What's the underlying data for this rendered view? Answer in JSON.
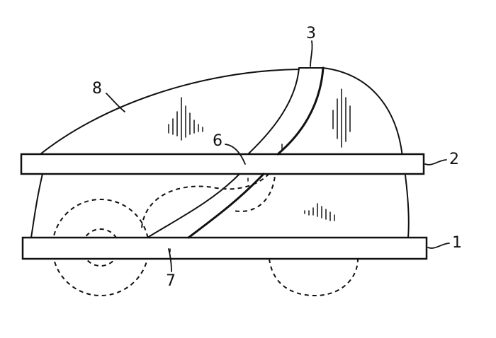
{
  "labels": {
    "ref_1": "1",
    "ref_2": "2",
    "ref_3": "3",
    "ref_6": "6",
    "ref_7": "7",
    "ref_8": "8"
  },
  "colors": {
    "ink": "#111111",
    "paper": "#ffffff"
  }
}
